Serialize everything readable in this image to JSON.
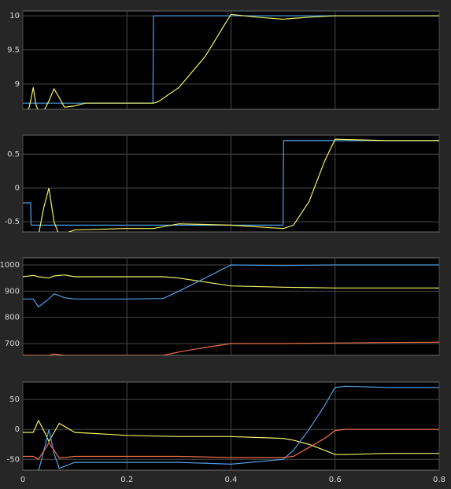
{
  "chart_data": [
    {
      "type": "line",
      "grid": true,
      "xtick_labels": false,
      "x": [
        0,
        0.01,
        0.015,
        0.02,
        0.025,
        0.03,
        0.04,
        0.05,
        0.06,
        0.07,
        0.08,
        0.1,
        0.12,
        0.2,
        0.25,
        0.251,
        0.26,
        0.3,
        0.35,
        0.39,
        0.4,
        0.45,
        0.5,
        0.55,
        0.6,
        0.7,
        0.8
      ],
      "xlim": [
        0,
        0.8
      ],
      "xticks": [
        0,
        0.2,
        0.4,
        0.6,
        0.8
      ],
      "ylim": [
        8.63,
        10.07
      ],
      "yticks": [
        9,
        9.5,
        10
      ],
      "series": [
        {
          "color": "#4f9fe6",
          "values": [
            8.72,
            8.72,
            8.72,
            8.72,
            8.72,
            8.72,
            8.72,
            8.72,
            8.72,
            8.72,
            8.72,
            8.72,
            8.72,
            8.72,
            8.72,
            10,
            10,
            10,
            10,
            10,
            10,
            10,
            10,
            10,
            10,
            10,
            10
          ]
        },
        {
          "color": "#f2f26a",
          "values": [
            8.6,
            8.6,
            8.75,
            8.95,
            8.7,
            8.6,
            8.6,
            8.75,
            8.93,
            8.8,
            8.66,
            8.68,
            8.72,
            8.72,
            8.72,
            8.72,
            8.74,
            8.95,
            9.4,
            9.9,
            10.02,
            9.98,
            9.95,
            9.98,
            10,
            10,
            10
          ]
        }
      ]
    },
    {
      "type": "line",
      "grid": true,
      "xtick_labels": false,
      "x": [
        0,
        0.015,
        0.016,
        0.03,
        0.04,
        0.05,
        0.06,
        0.07,
        0.1,
        0.2,
        0.25,
        0.3,
        0.4,
        0.5,
        0.501,
        0.52,
        0.55,
        0.58,
        0.6,
        0.7,
        0.8
      ],
      "xlim": [
        0,
        0.8
      ],
      "xticks": [
        0,
        0.2,
        0.4,
        0.6,
        0.8
      ],
      "ylim": [
        -0.65,
        0.78
      ],
      "yticks": [
        -0.5,
        0,
        0.5
      ],
      "series": [
        {
          "color": "#4f9fe6",
          "values": [
            -0.22,
            -0.22,
            -0.55,
            -0.55,
            -0.55,
            -0.55,
            -0.55,
            -0.55,
            -0.55,
            -0.55,
            -0.55,
            -0.55,
            -0.55,
            -0.55,
            0.7,
            0.7,
            0.7,
            0.7,
            0.7,
            0.7,
            0.7
          ]
        },
        {
          "color": "#f2f26a",
          "values": [
            -0.7,
            -0.7,
            -0.7,
            -0.7,
            -0.3,
            0,
            -0.5,
            -0.7,
            -0.62,
            -0.6,
            -0.6,
            -0.53,
            -0.55,
            -0.6,
            -0.6,
            -0.55,
            -0.2,
            0.4,
            0.72,
            0.7,
            0.7
          ]
        }
      ]
    },
    {
      "type": "line",
      "grid": true,
      "xtick_labels": false,
      "x": [
        0,
        0.02,
        0.03,
        0.05,
        0.06,
        0.08,
        0.1,
        0.2,
        0.27,
        0.3,
        0.35,
        0.4,
        0.5,
        0.6,
        0.7,
        0.8
      ],
      "xlim": [
        0,
        0.8
      ],
      "xticks": [
        0,
        0.2,
        0.4,
        0.6,
        0.8
      ],
      "ylim": [
        655,
        1027
      ],
      "yticks": [
        700,
        800,
        900,
        1000
      ],
      "series": [
        {
          "color": "#f2f26a",
          "values": [
            955,
            960,
            955,
            950,
            958,
            962,
            955,
            955,
            955,
            950,
            935,
            920,
            915,
            912,
            912,
            912
          ]
        },
        {
          "color": "#4f9fe6",
          "values": [
            870,
            870,
            840,
            870,
            890,
            875,
            870,
            870,
            872,
            900,
            950,
            1000,
            998,
            1000,
            1000,
            1000
          ]
        },
        {
          "color": "#f0704a",
          "values": [
            655,
            655,
            655,
            655,
            660,
            655,
            655,
            655,
            655,
            668,
            685,
            700,
            700,
            702,
            704,
            705
          ]
        }
      ]
    },
    {
      "type": "line",
      "grid": true,
      "xtick_labels": true,
      "x": [
        0,
        0.02,
        0.03,
        0.045,
        0.05,
        0.06,
        0.07,
        0.1,
        0.2,
        0.3,
        0.4,
        0.5,
        0.52,
        0.55,
        0.58,
        0.6,
        0.62,
        0.7,
        0.8
      ],
      "xlim": [
        0,
        0.8
      ],
      "xticks": [
        0,
        0.2,
        0.4,
        0.6,
        0.8
      ],
      "ylim": [
        -68,
        79
      ],
      "yticks": [
        -50,
        0,
        50
      ],
      "series": [
        {
          "color": "#f2f26a",
          "values": [
            -5,
            -5,
            15,
            -10,
            -20,
            -5,
            10,
            -5,
            -10,
            -12,
            -12,
            -15,
            -18,
            -25,
            -35,
            -42,
            -42,
            -40,
            -40
          ]
        },
        {
          "color": "#4f9fe6",
          "values": [
            -75,
            -75,
            -70,
            -20,
            0,
            -40,
            -65,
            -55,
            -55,
            -55,
            -58,
            -50,
            -35,
            0,
            40,
            70,
            72,
            70,
            70
          ]
        },
        {
          "color": "#f0704a",
          "values": [
            -45,
            -45,
            -50,
            -30,
            -22,
            -35,
            -48,
            -45,
            -45,
            -45,
            -47,
            -47,
            -45,
            -30,
            -15,
            -2,
            0,
            0,
            0
          ]
        }
      ]
    }
  ]
}
